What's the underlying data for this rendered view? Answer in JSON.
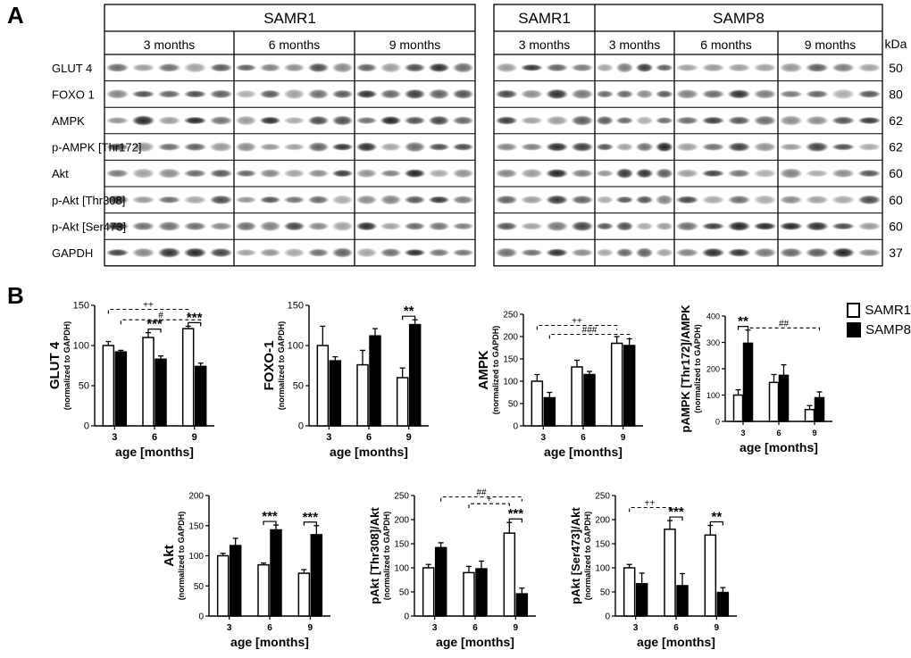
{
  "figure": {
    "panel_a_label": "A",
    "panel_b_label": "B"
  },
  "western_blot": {
    "left_group": "SAMR1",
    "right_groups": [
      "SAMR1",
      "SAMP8"
    ],
    "left_timepoints": [
      "3 months",
      "6 months",
      "9 months"
    ],
    "right_timepoints": [
      "3 months",
      "3 months",
      "6 months",
      "9 months"
    ],
    "kda_header": "kDa",
    "proteins": [
      "GLUT 4",
      "FOXO 1",
      "AMPK",
      "p-AMPK [Thr172]",
      "Akt",
      "p-Akt [Thr308]",
      "p-Akt [Ser473]",
      "GAPDH"
    ],
    "kda_values": [
      "50",
      "80",
      "62",
      "62",
      "60",
      "60",
      "60",
      "37"
    ]
  },
  "legend": {
    "entries": [
      {
        "label": "SAMR1",
        "color": "#ffffff"
      },
      {
        "label": "SAMP8",
        "color": "#000000"
      }
    ]
  },
  "chart_data": [
    {
      "type": "bar",
      "id": "glut4",
      "ylabel": "GLUT 4",
      "ysub": "(normalized to GAPDH)",
      "xlabel": "age [months]",
      "categories": [
        "3",
        "6",
        "9"
      ],
      "ylim": [
        0,
        150
      ],
      "yticks": [
        0,
        50,
        100,
        150
      ],
      "series": [
        {
          "name": "SAMR1",
          "values": [
            100,
            110,
            121
          ],
          "err": [
            5,
            6,
            3
          ]
        },
        {
          "name": "SAMP8",
          "values": [
            92,
            83,
            74
          ],
          "err": [
            2,
            4,
            4
          ]
        }
      ],
      "within": [
        {
          "group": 1,
          "text": "***"
        },
        {
          "group": 2,
          "text": "***"
        }
      ],
      "across": [
        {
          "from": 0,
          "to": 2,
          "text": "++",
          "series": 0,
          "y": 145
        },
        {
          "from": 0,
          "to": 2,
          "text": "#",
          "series": 1,
          "y": 132
        }
      ]
    },
    {
      "type": "bar",
      "id": "foxo1",
      "ylabel": "FOXO-1",
      "ysub": "(normalized to GAPDH)",
      "xlabel": "age [months]",
      "categories": [
        "3",
        "6",
        "9"
      ],
      "ylim": [
        0,
        150
      ],
      "yticks": [
        0,
        50,
        100,
        150
      ],
      "series": [
        {
          "name": "SAMR1",
          "values": [
            100,
            76,
            60
          ],
          "err": [
            24,
            18,
            12
          ]
        },
        {
          "name": "SAMP8",
          "values": [
            81,
            112,
            126
          ],
          "err": [
            5,
            9,
            6
          ]
        }
      ],
      "within": [
        {
          "group": 2,
          "text": "**"
        }
      ],
      "across": []
    },
    {
      "type": "bar",
      "id": "ampk",
      "ylabel": "AMPK",
      "ysub": "(normalized to GAPDH)",
      "xlabel": "age [months]",
      "categories": [
        "3",
        "6",
        "9"
      ],
      "ylim": [
        0,
        250
      ],
      "yticks": [
        0,
        50,
        100,
        150,
        200,
        250
      ],
      "series": [
        {
          "name": "SAMR1",
          "values": [
            100,
            132,
            185
          ],
          "err": [
            15,
            15,
            15
          ]
        },
        {
          "name": "SAMP8",
          "values": [
            63,
            115,
            180
          ],
          "err": [
            12,
            7,
            15
          ]
        }
      ],
      "within": [],
      "across": [
        {
          "from": 0,
          "to": 2,
          "text": "++",
          "series": 0,
          "y": 225
        },
        {
          "from": 0,
          "to": 2,
          "text": "###",
          "series": 1,
          "y": 205
        }
      ]
    },
    {
      "type": "bar",
      "id": "pampk",
      "ylabel": "pAMPK [Thr172]/AMPK",
      "ysub": "(normalized to GAPDH)",
      "xlabel": "age [months]",
      "categories": [
        "3",
        "6",
        "9"
      ],
      "ylim": [
        0,
        400
      ],
      "yticks": [
        0,
        100,
        200,
        300,
        400
      ],
      "series": [
        {
          "name": "SAMR1",
          "values": [
            100,
            148,
            45
          ],
          "err": [
            20,
            30,
            15
          ]
        },
        {
          "name": "SAMP8",
          "values": [
            297,
            175,
            90
          ],
          "err": [
            50,
            40,
            22
          ]
        }
      ],
      "within": [
        {
          "group": 0,
          "text": "**"
        }
      ],
      "across": [
        {
          "from": 0,
          "to": 2,
          "text": "##",
          "series": 1,
          "y": 355
        }
      ]
    },
    {
      "type": "bar",
      "id": "akt",
      "ylabel": "Akt",
      "ysub": "(normalized to GAPDH)",
      "xlabel": "age [months]",
      "categories": [
        "3",
        "6",
        "9"
      ],
      "ylim": [
        0,
        200
      ],
      "yticks": [
        0,
        50,
        100,
        150,
        200
      ],
      "series": [
        {
          "name": "SAMR1",
          "values": [
            100,
            85,
            71
          ],
          "err": [
            4,
            3,
            6
          ]
        },
        {
          "name": "SAMP8",
          "values": [
            117,
            143,
            135
          ],
          "err": [
            12,
            8,
            15
          ]
        }
      ],
      "within": [
        {
          "group": 1,
          "text": "***"
        },
        {
          "group": 2,
          "text": "***"
        }
      ],
      "across": []
    },
    {
      "type": "bar",
      "id": "pakt308",
      "ylabel": "pAkt [Thr308]/Akt",
      "ysub": "(normalized to GAPDH)",
      "xlabel": "age [months]",
      "categories": [
        "3",
        "6",
        "9"
      ],
      "ylim": [
        0,
        250
      ],
      "yticks": [
        0,
        50,
        100,
        150,
        200,
        250
      ],
      "series": [
        {
          "name": "SAMR1",
          "values": [
            100,
            90,
            172
          ],
          "err": [
            7,
            13,
            22
          ]
        },
        {
          "name": "SAMP8",
          "values": [
            142,
            98,
            46
          ],
          "err": [
            10,
            16,
            12
          ]
        }
      ],
      "within": [
        {
          "group": 2,
          "text": "***"
        }
      ],
      "across": [
        {
          "from": 0,
          "to": 2,
          "text": "##",
          "series": 1,
          "y": 247
        },
        {
          "from": 1,
          "to": 2,
          "text": "+",
          "series": 0,
          "y": 233
        }
      ]
    },
    {
      "type": "bar",
      "id": "pakt473",
      "ylabel": "pAkt [Ser473]/Akt",
      "ysub": "(normalized to GAPDH)",
      "xlabel": "age [months]",
      "categories": [
        "3",
        "6",
        "9"
      ],
      "ylim": [
        0,
        250
      ],
      "yticks": [
        0,
        50,
        100,
        150,
        200,
        250
      ],
      "series": [
        {
          "name": "SAMR1",
          "values": [
            100,
            180,
            168
          ],
          "err": [
            7,
            18,
            20
          ]
        },
        {
          "name": "SAMP8",
          "values": [
            67,
            63,
            49
          ],
          "err": [
            22,
            25,
            10
          ]
        }
      ],
      "within": [
        {
          "group": 1,
          "text": "***"
        },
        {
          "group": 2,
          "text": "**"
        }
      ],
      "across": [
        {
          "from": 0,
          "to": 1,
          "text": "++",
          "series": 0,
          "y": 225
        }
      ]
    }
  ]
}
